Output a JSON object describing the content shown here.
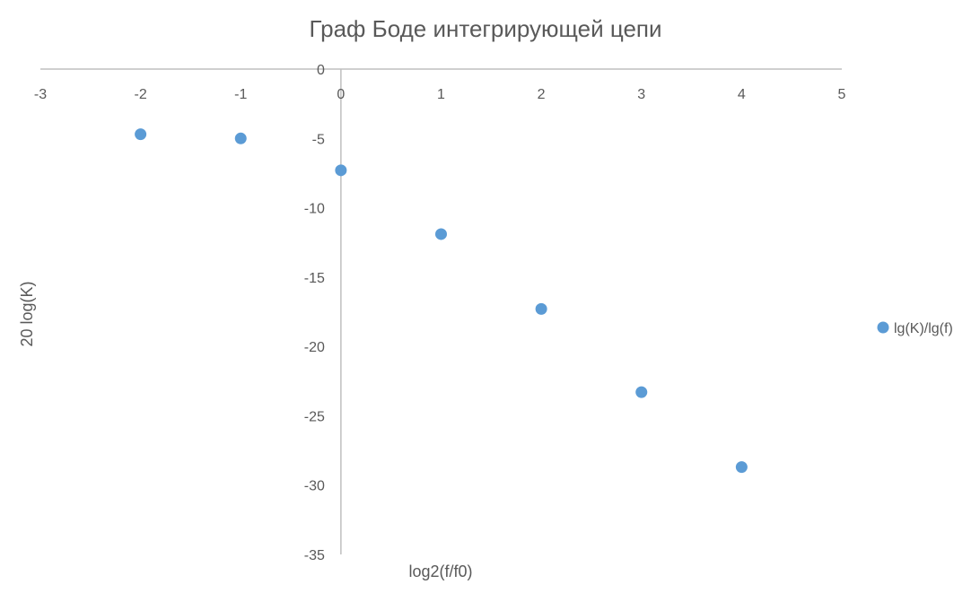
{
  "chart_data": {
    "type": "scatter",
    "title": "Граф Боде интегрирующей цепи",
    "xlabel": "log2(f/f0)",
    "ylabel": "20 log(K)",
    "xlim": [
      -3,
      5
    ],
    "ylim": [
      -35,
      0
    ],
    "xticks": [
      -3,
      -2,
      -1,
      0,
      1,
      2,
      3,
      4,
      5
    ],
    "yticks": [
      0,
      -5,
      -10,
      -15,
      -20,
      -25,
      -30,
      -35
    ],
    "grid": false,
    "legend_position": "right",
    "series": [
      {
        "name": "lg(K)/lg(f)",
        "color": "#5B9BD5",
        "marker": "circle",
        "x": [
          -2,
          -1,
          0,
          1,
          2,
          3,
          4
        ],
        "y": [
          -4.7,
          -5.0,
          -7.3,
          -11.9,
          -17.3,
          -23.3,
          -28.7
        ]
      }
    ],
    "colors": {
      "axis": "#BFBFBF",
      "text": "#595959"
    }
  }
}
